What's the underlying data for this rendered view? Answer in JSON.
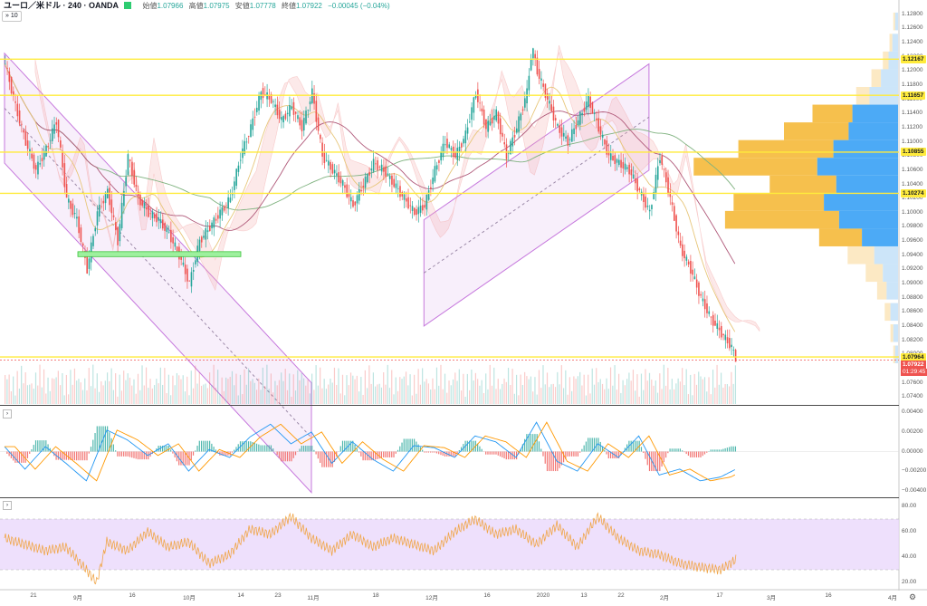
{
  "header": {
    "symbol": "ユーロ／米ドル · 240 · OANDA",
    "ohlc": [
      {
        "label": "始値",
        "value": "1.07966"
      },
      {
        "label": "高値",
        "value": "1.07975"
      },
      {
        "label": "安値",
        "value": "1.07778"
      },
      {
        "label": "終値",
        "value": "1.07922"
      }
    ],
    "change": "−0.00045 (−0.04%)",
    "indicator_toggle": "» 10"
  },
  "colors": {
    "up": "#26a69a",
    "down": "#ef5350",
    "hline": "#ffeb3b",
    "channel": "#c678dd",
    "vp_strong_ask": "#f5b93a",
    "vp_strong_bid": "#42a5f5",
    "rsi_band": "#ead8fb",
    "rsi_line": "#f0a64a",
    "macd_line": "#2196f3",
    "signal_line": "#ff9800"
  },
  "price_axis": {
    "ticks": [
      "1.12800",
      "1.12600",
      "1.12400",
      "1.12200",
      "1.12000",
      "1.11800",
      "1.11600",
      "1.11400",
      "1.11200",
      "1.11000",
      "1.10800",
      "1.10600",
      "1.10400",
      "1.10200",
      "1.10000",
      "1.09800",
      "1.09600",
      "1.09400",
      "1.09200",
      "1.09000",
      "1.08800",
      "1.08600",
      "1.08400",
      "1.08200",
      "1.08000",
      "1.07800",
      "1.07600",
      "1.07400"
    ],
    "highlighted": [
      {
        "label": "1.12167",
        "price": 1.12167
      },
      {
        "label": "1.11657",
        "price": 1.11657
      },
      {
        "label": "1.10855",
        "price": 1.10855
      },
      {
        "label": "1.10274",
        "price": 1.10274
      },
      {
        "label": "1.07964",
        "price": 1.07964
      }
    ],
    "current": {
      "label": "1.07922",
      "price": 1.07922
    },
    "countdown": "01:29:45"
  },
  "macd_axis": {
    "ticks": [
      "0.00400",
      "0.00200",
      "0.00000",
      "−0.00200",
      "−0.00400"
    ]
  },
  "rsi_axis": {
    "ticks": [
      "80.00",
      "60.00",
      "40.00",
      "20.00"
    ]
  },
  "time_axis": {
    "labels": [
      "21",
      "9月",
      "16",
      "10月",
      "14",
      "23",
      "11月",
      "18",
      "12月",
      "16",
      "2020",
      "13",
      "22",
      "2月",
      "17",
      "3月",
      "16",
      "4月"
    ]
  },
  "chart_data": {
    "type": "candlestick",
    "price_range": [
      1.073,
      1.129
    ],
    "horizontal_levels": [
      1.12167,
      1.11657,
      1.10855,
      1.10274,
      1.07964,
      1.07922
    ],
    "channels": [
      {
        "start": {
          "bar": 0,
          "price": 1.1225
        },
        "end": {
          "bar": 300,
          "price": 1.076
        },
        "width": 0.0155
      },
      {
        "start": {
          "bar": 410,
          "price": 1.099
        },
        "end": {
          "bar": 630,
          "price": 1.121
        },
        "width": 0.015
      }
    ],
    "close_path": [
      [
        0,
        1.121
      ],
      [
        10,
        1.115
      ],
      [
        20,
        1.11
      ],
      [
        30,
        1.106
      ],
      [
        40,
        1.109
      ],
      [
        50,
        1.113
      ],
      [
        60,
        1.102
      ],
      [
        70,
        1.099
      ],
      [
        80,
        1.092
      ],
      [
        90,
        1.1
      ],
      [
        100,
        1.103
      ],
      [
        110,
        1.096
      ],
      [
        120,
        1.108
      ],
      [
        130,
        1.102
      ],
      [
        140,
        1.1
      ],
      [
        150,
        1.099
      ],
      [
        160,
        1.097
      ],
      [
        170,
        1.094
      ],
      [
        180,
        1.09
      ],
      [
        190,
        1.096
      ],
      [
        200,
        1.098
      ],
      [
        210,
        1.1
      ],
      [
        220,
        1.102
      ],
      [
        230,
        1.108
      ],
      [
        240,
        1.112
      ],
      [
        250,
        1.117
      ],
      [
        260,
        1.116
      ],
      [
        270,
        1.113
      ],
      [
        280,
        1.115
      ],
      [
        290,
        1.112
      ],
      [
        300,
        1.117
      ],
      [
        310,
        1.108
      ],
      [
        320,
        1.106
      ],
      [
        330,
        1.104
      ],
      [
        340,
        1.101
      ],
      [
        350,
        1.104
      ],
      [
        360,
        1.107
      ],
      [
        370,
        1.106
      ],
      [
        380,
        1.104
      ],
      [
        390,
        1.102
      ],
      [
        400,
        1.1
      ],
      [
        410,
        1.101
      ],
      [
        420,
        1.106
      ],
      [
        430,
        1.11
      ],
      [
        440,
        1.108
      ],
      [
        450,
        1.111
      ],
      [
        460,
        1.117
      ],
      [
        470,
        1.112
      ],
      [
        480,
        1.114
      ],
      [
        490,
        1.108
      ],
      [
        500,
        1.112
      ],
      [
        510,
        1.117
      ],
      [
        515,
        1.1235
      ],
      [
        520,
        1.12
      ],
      [
        530,
        1.116
      ],
      [
        540,
        1.112
      ],
      [
        550,
        1.11
      ],
      [
        560,
        1.113
      ],
      [
        570,
        1.116
      ],
      [
        580,
        1.112
      ],
      [
        590,
        1.108
      ],
      [
        600,
        1.107
      ],
      [
        610,
        1.106
      ],
      [
        620,
        1.103
      ],
      [
        630,
        1.1
      ],
      [
        640,
        1.108
      ],
      [
        650,
        1.102
      ],
      [
        660,
        1.095
      ],
      [
        670,
        1.092
      ],
      [
        680,
        1.088
      ],
      [
        690,
        1.085
      ],
      [
        700,
        1.083
      ],
      [
        710,
        1.081
      ],
      [
        715,
        1.079
      ]
    ],
    "volume_profile": [
      {
        "price": 1.127,
        "ask": 2,
        "bid": 3
      },
      {
        "price": 1.124,
        "ask": 3,
        "bid": 6
      },
      {
        "price": 1.1215,
        "ask": 6,
        "bid": 10
      },
      {
        "price": 1.119,
        "ask": 10,
        "bid": 18
      },
      {
        "price": 1.1165,
        "ask": 14,
        "bid": 30
      },
      {
        "price": 1.114,
        "ask": 42,
        "bid": 48
      },
      {
        "price": 1.1115,
        "ask": 68,
        "bid": 52
      },
      {
        "price": 1.109,
        "ask": 100,
        "bid": 68
      },
      {
        "price": 1.1065,
        "ask": 130,
        "bid": 85
      },
      {
        "price": 1.104,
        "ask": 70,
        "bid": 65
      },
      {
        "price": 1.1015,
        "ask": 95,
        "bid": 78
      },
      {
        "price": 1.099,
        "ask": 120,
        "bid": 62
      },
      {
        "price": 1.0965,
        "ask": 45,
        "bid": 38
      },
      {
        "price": 1.094,
        "ask": 28,
        "bid": 25
      },
      {
        "price": 1.0915,
        "ask": 18,
        "bid": 16
      },
      {
        "price": 1.089,
        "ask": 10,
        "bid": 12
      },
      {
        "price": 1.086,
        "ask": 6,
        "bid": 8
      },
      {
        "price": 1.083,
        "ask": 3,
        "bid": 5
      },
      {
        "price": 1.08,
        "ask": 2,
        "bid": 3
      }
    ],
    "macd_range": [
      -0.0045,
      0.0045
    ],
    "macd_path": [
      [
        0,
        0.0005
      ],
      [
        20,
        -0.0018
      ],
      [
        40,
        0.0005
      ],
      [
        60,
        -0.0012
      ],
      [
        80,
        -0.003
      ],
      [
        100,
        0.0022
      ],
      [
        120,
        0.0012
      ],
      [
        140,
        -0.0004
      ],
      [
        160,
        0.0008
      ],
      [
        180,
        -0.002
      ],
      [
        200,
        0.0002
      ],
      [
        220,
        -0.0006
      ],
      [
        240,
        0.0015
      ],
      [
        260,
        0.0028
      ],
      [
        280,
        0.0008
      ],
      [
        300,
        0.002
      ],
      [
        320,
        -0.0012
      ],
      [
        340,
        0.001
      ],
      [
        360,
        -0.0008
      ],
      [
        380,
        -0.002
      ],
      [
        400,
        0.0006
      ],
      [
        420,
        0.0004
      ],
      [
        440,
        -0.0006
      ],
      [
        460,
        0.0016
      ],
      [
        480,
        0.001
      ],
      [
        500,
        -0.0006
      ],
      [
        520,
        0.003
      ],
      [
        540,
        -0.001
      ],
      [
        560,
        -0.002
      ],
      [
        580,
        0.0008
      ],
      [
        600,
        -0.0006
      ],
      [
        620,
        0.0016
      ],
      [
        640,
        -0.0024
      ],
      [
        660,
        -0.0018
      ],
      [
        680,
        -0.003
      ],
      [
        700,
        -0.0026
      ],
      [
        715,
        -0.0018
      ]
    ],
    "rsi_range": [
      15,
      85
    ],
    "rsi_band": [
      30,
      70
    ],
    "rsi_path": [
      [
        0,
        55
      ],
      [
        20,
        50
      ],
      [
        40,
        45
      ],
      [
        60,
        48
      ],
      [
        80,
        30
      ],
      [
        90,
        20
      ],
      [
        100,
        52
      ],
      [
        120,
        45
      ],
      [
        140,
        60
      ],
      [
        160,
        48
      ],
      [
        180,
        52
      ],
      [
        200,
        35
      ],
      [
        220,
        42
      ],
      [
        240,
        62
      ],
      [
        260,
        58
      ],
      [
        280,
        72
      ],
      [
        300,
        55
      ],
      [
        320,
        45
      ],
      [
        340,
        58
      ],
      [
        360,
        48
      ],
      [
        380,
        55
      ],
      [
        400,
        50
      ],
      [
        420,
        45
      ],
      [
        440,
        60
      ],
      [
        460,
        70
      ],
      [
        480,
        58
      ],
      [
        500,
        62
      ],
      [
        520,
        50
      ],
      [
        540,
        65
      ],
      [
        560,
        48
      ],
      [
        580,
        72
      ],
      [
        600,
        55
      ],
      [
        620,
        45
      ],
      [
        640,
        42
      ],
      [
        660,
        35
      ],
      [
        680,
        32
      ],
      [
        700,
        30
      ],
      [
        715,
        38
      ]
    ]
  }
}
